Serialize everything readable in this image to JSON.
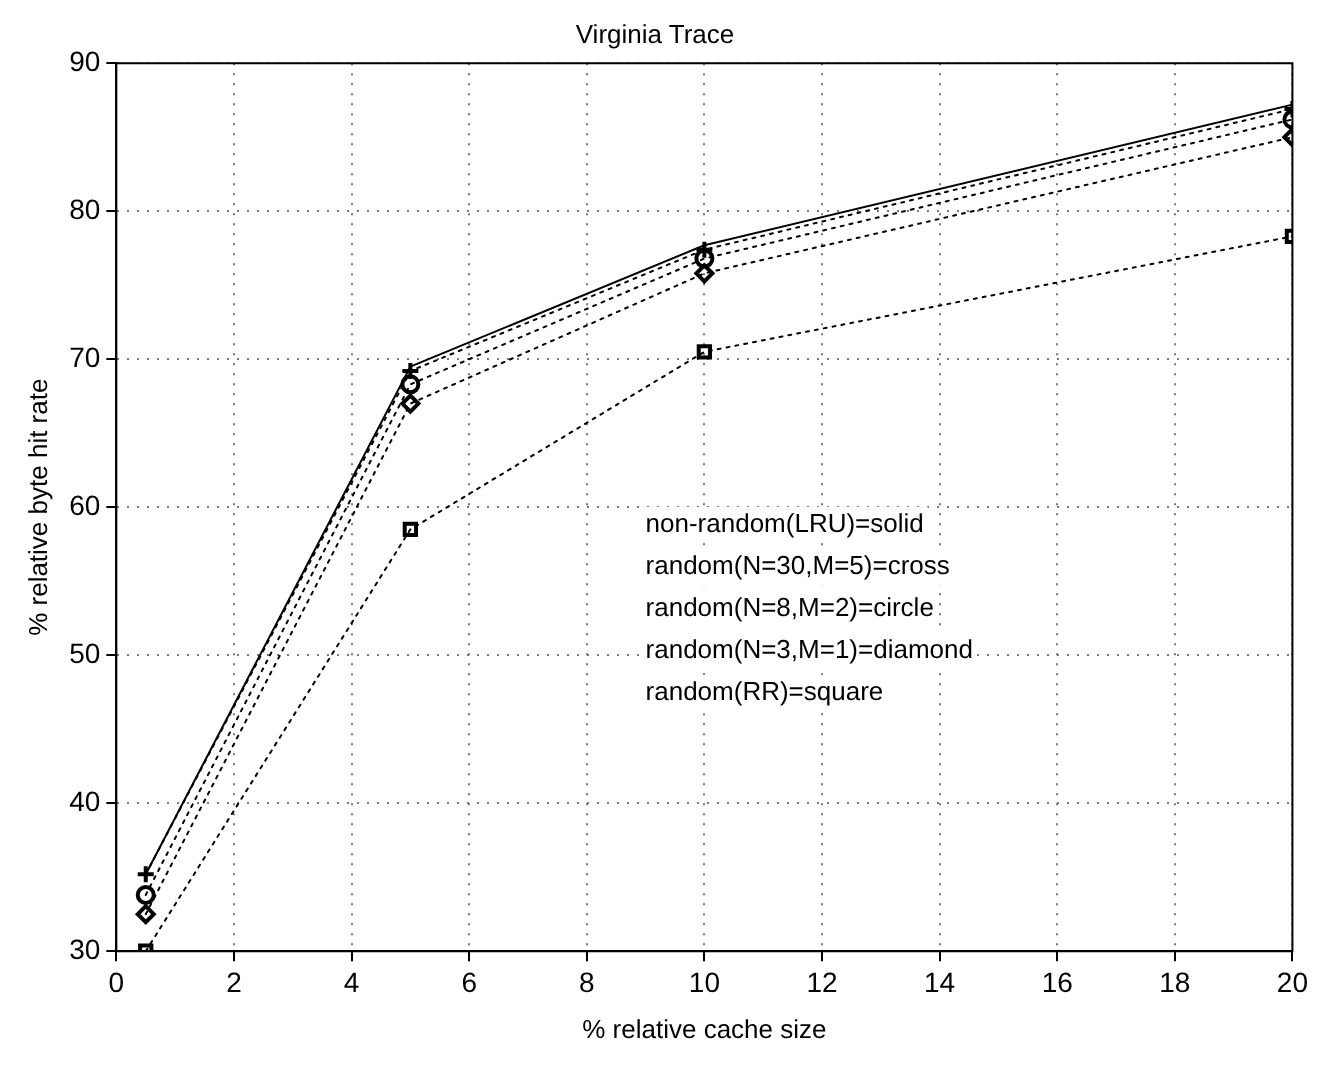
{
  "chart_data": {
    "type": "line",
    "title": "Virginia Trace",
    "xlabel": "% relative cache size",
    "ylabel": "% relative byte hit rate",
    "x": [
      0.5,
      5,
      10,
      20
    ],
    "series": [
      {
        "color": "#000000",
        "values": [
          35.2,
          69.5,
          77.7,
          87.2
        ],
        "line_style": "solid",
        "marker": "none"
      },
      {
        "color": "#000000",
        "values": [
          35.2,
          69.2,
          77.4,
          86.9
        ],
        "line_style": "dotted",
        "marker": "cross"
      },
      {
        "color": "#000000",
        "values": [
          33.8,
          68.3,
          76.8,
          86.2
        ],
        "line_style": "dotted",
        "marker": "circle"
      },
      {
        "color": "#000000",
        "values": [
          32.5,
          67.0,
          75.8,
          85.0
        ],
        "line_style": "dotted",
        "marker": "diamond"
      },
      {
        "color": "#000000",
        "values": [
          30.0,
          58.5,
          70.5,
          78.3
        ],
        "line_style": "dotted",
        "marker": "square"
      }
    ],
    "xlim": [
      0,
      20
    ],
    "xticks": [
      0,
      2,
      4,
      6,
      8,
      10,
      12,
      14,
      16,
      18,
      20
    ],
    "ylim": [
      30,
      90
    ],
    "yticks": [
      30,
      40,
      50,
      60,
      70,
      80,
      90
    ],
    "grid": true,
    "legend": false,
    "annotations": [
      "non-random(LRU)=solid",
      "random(N=30,M=5)=cross",
      "random(N=8,M=2)=circle",
      "random(N=3,M=1)=diamond",
      "random(RR)=square"
    ]
  }
}
